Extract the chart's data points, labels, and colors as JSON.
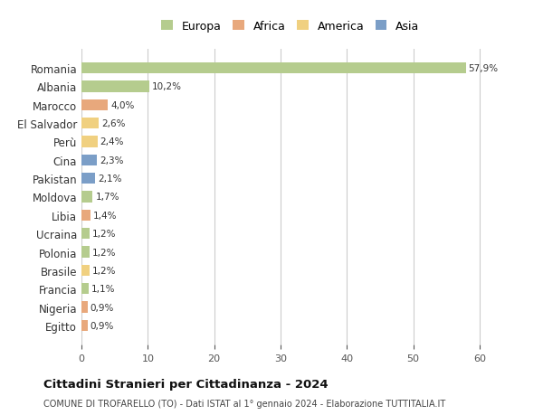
{
  "countries": [
    "Romania",
    "Albania",
    "Marocco",
    "El Salvador",
    "Perù",
    "Cina",
    "Pakistan",
    "Moldova",
    "Libia",
    "Ucraina",
    "Polonia",
    "Brasile",
    "Francia",
    "Nigeria",
    "Egitto"
  ],
  "values": [
    57.9,
    10.2,
    4.0,
    2.6,
    2.4,
    2.3,
    2.1,
    1.7,
    1.4,
    1.2,
    1.2,
    1.2,
    1.1,
    0.9,
    0.9
  ],
  "labels": [
    "57,9%",
    "10,2%",
    "4,0%",
    "2,6%",
    "2,4%",
    "2,3%",
    "2,1%",
    "1,7%",
    "1,4%",
    "1,2%",
    "1,2%",
    "1,2%",
    "1,1%",
    "0,9%",
    "0,9%"
  ],
  "continents": [
    "Europa",
    "Europa",
    "Africa",
    "America",
    "America",
    "Asia",
    "Asia",
    "Europa",
    "Africa",
    "Europa",
    "Europa",
    "America",
    "Europa",
    "Africa",
    "Africa"
  ],
  "continent_colors": {
    "Europa": "#b5cc8e",
    "Africa": "#e8a87c",
    "America": "#f0d080",
    "Asia": "#7b9ec7"
  },
  "legend_order": [
    "Europa",
    "Africa",
    "America",
    "Asia"
  ],
  "title": "Cittadini Stranieri per Cittadinanza - 2024",
  "subtitle": "COMUNE DI TROFARELLO (TO) - Dati ISTAT al 1° gennaio 2024 - Elaborazione TUTTITALIA.IT",
  "xlim": [
    0,
    63
  ],
  "xticks": [
    0,
    10,
    20,
    30,
    40,
    50,
    60
  ],
  "background_color": "#ffffff",
  "grid_color": "#cccccc",
  "bar_height": 0.6
}
